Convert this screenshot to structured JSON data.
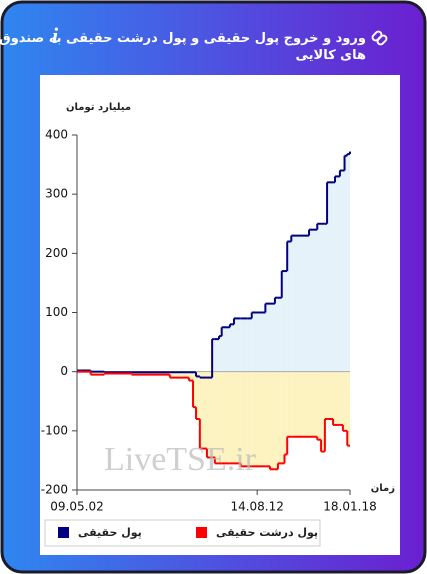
{
  "chart_data": {
    "type": "line",
    "step": true,
    "title": "ورود و خروج پول حقیقی و پول درشت حقیقی به صندوق های کالایی",
    "y_axis_label": "میلیارد تومان",
    "x_axis_label": "زمان",
    "watermark": "LiveTSE.ir",
    "x": [
      0,
      5,
      10,
      20,
      34,
      41,
      42.5,
      43.6,
      45,
      47.6,
      49.5,
      50.5,
      52,
      53,
      56,
      57.5,
      60,
      62.6,
      64,
      69,
      70.7,
      72.5,
      73.6,
      75,
      76,
      77,
      78.5,
      85,
      88,
      89.4,
      90.8,
      91.6,
      93.8,
      94.5,
      96.3,
      97.4,
      98,
      99,
      100
    ],
    "series": [
      {
        "name": "پول حقیقی",
        "color": "#000080",
        "fill": "#e6f2fa",
        "values": [
          2,
          0,
          -1,
          -1,
          -1,
          -1,
          -1,
          -8,
          -10,
          -10,
          55,
          55,
          60,
          75,
          80,
          90,
          90,
          90,
          100,
          115,
          115,
          125,
          125,
          170,
          170,
          220,
          230,
          240,
          250,
          250,
          250,
          320,
          320,
          330,
          340,
          340,
          365,
          368,
          372
        ]
      },
      {
        "name": "پول درشت حقیقی",
        "color": "#ff0000",
        "fill": "#fdf3c0",
        "values": [
          0,
          -5,
          -3,
          -5,
          -10,
          -15,
          -60,
          -80,
          -130,
          -145,
          -145,
          -155,
          -155,
          -155,
          -155,
          -155,
          -160,
          -160,
          -160,
          -160,
          -165,
          -165,
          -155,
          -155,
          -140,
          -110,
          -110,
          -110,
          -115,
          -135,
          -80,
          -80,
          -90,
          -90,
          -90,
          -100,
          -100,
          -125,
          -125
        ]
      }
    ],
    "xlim": [
      0,
      100
    ],
    "xticks": [
      {
        "value": 0,
        "label": "09.05.02"
      },
      {
        "value": 66,
        "label": "14.08.12"
      },
      {
        "value": 100,
        "label": "18.01.18"
      }
    ],
    "ylim": [
      -200,
      400
    ],
    "yticks": [
      -200,
      -100,
      0,
      100,
      200,
      300,
      400
    ]
  }
}
